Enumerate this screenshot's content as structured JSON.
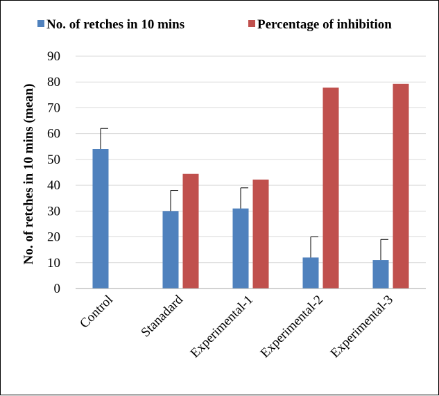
{
  "chart_data": {
    "type": "bar",
    "categories": [
      "Control",
      "Stanadard",
      "Experimental-1",
      "Experimental-2",
      "Experimental-3"
    ],
    "series": [
      {
        "name": "No. of retches in 10 mins",
        "color": "#4f81bd",
        "values": [
          54,
          30,
          31,
          12,
          11
        ],
        "error": [
          8,
          8,
          8,
          8,
          8
        ]
      },
      {
        "name": "Percentage of inhibition",
        "color": "#c0504d",
        "values": [
          null,
          44.4,
          42.2,
          77.8,
          79.3
        ]
      }
    ],
    "xlabel": "",
    "ylabel": "No. of retches in 10 mins (mean)",
    "ylim": [
      0,
      90
    ],
    "yticks": [
      0,
      10,
      20,
      30,
      40,
      50,
      60,
      70,
      80,
      90
    ],
    "grid": true,
    "legend": "top"
  }
}
